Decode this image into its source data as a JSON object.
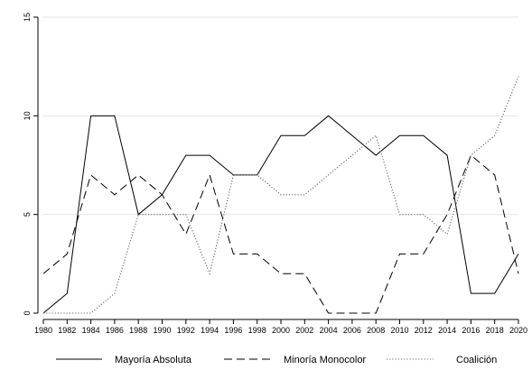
{
  "chart_data": {
    "type": "line",
    "title": "",
    "xlabel": "",
    "ylabel": "",
    "x": [
      1980,
      1982,
      1984,
      1986,
      1988,
      1990,
      1992,
      1994,
      1996,
      1998,
      2000,
      2002,
      2004,
      2006,
      2008,
      2010,
      2012,
      2014,
      2016,
      2018,
      2020
    ],
    "x_tick_labels": [
      "1980",
      "1982",
      "1984",
      "1986",
      "1988",
      "1990",
      "1992",
      "1994",
      "1996",
      "1998",
      "2000",
      "2002",
      "2004",
      "2006",
      "2008",
      "2010",
      "2012",
      "2014",
      "2016",
      "2018",
      "2020"
    ],
    "xlim": [
      1980,
      2020
    ],
    "ylim": [
      0,
      15
    ],
    "y_ticks": [
      0,
      5,
      10,
      15
    ],
    "y_tick_labels": [
      "0",
      "5",
      "10",
      "15"
    ],
    "grid": "horizontal",
    "legend_position": "bottom",
    "series": [
      {
        "name": "Mayoría Absoluta",
        "style": "solid",
        "values": [
          0,
          1,
          10,
          10,
          5,
          6,
          8,
          8,
          7,
          7,
          9,
          9,
          10,
          9,
          8,
          9,
          9,
          8,
          1,
          1,
          3
        ]
      },
      {
        "name": "Minoría Monocolor",
        "style": "dashed",
        "values": [
          2,
          3,
          7,
          6,
          7,
          6,
          4,
          7,
          3,
          3,
          2,
          2,
          0,
          0,
          0,
          3,
          3,
          5,
          8,
          7,
          2
        ]
      },
      {
        "name": "Coalición",
        "style": "dotted",
        "values": [
          0,
          0,
          0,
          1,
          5,
          5,
          5,
          2,
          7,
          7,
          6,
          6,
          7,
          8,
          9,
          5,
          5,
          4,
          8,
          9,
          12
        ]
      }
    ]
  },
  "colors": {
    "line": "#000000",
    "dotted_line": "#666666",
    "grid": "#e6e6e6",
    "axis": "#000000"
  }
}
